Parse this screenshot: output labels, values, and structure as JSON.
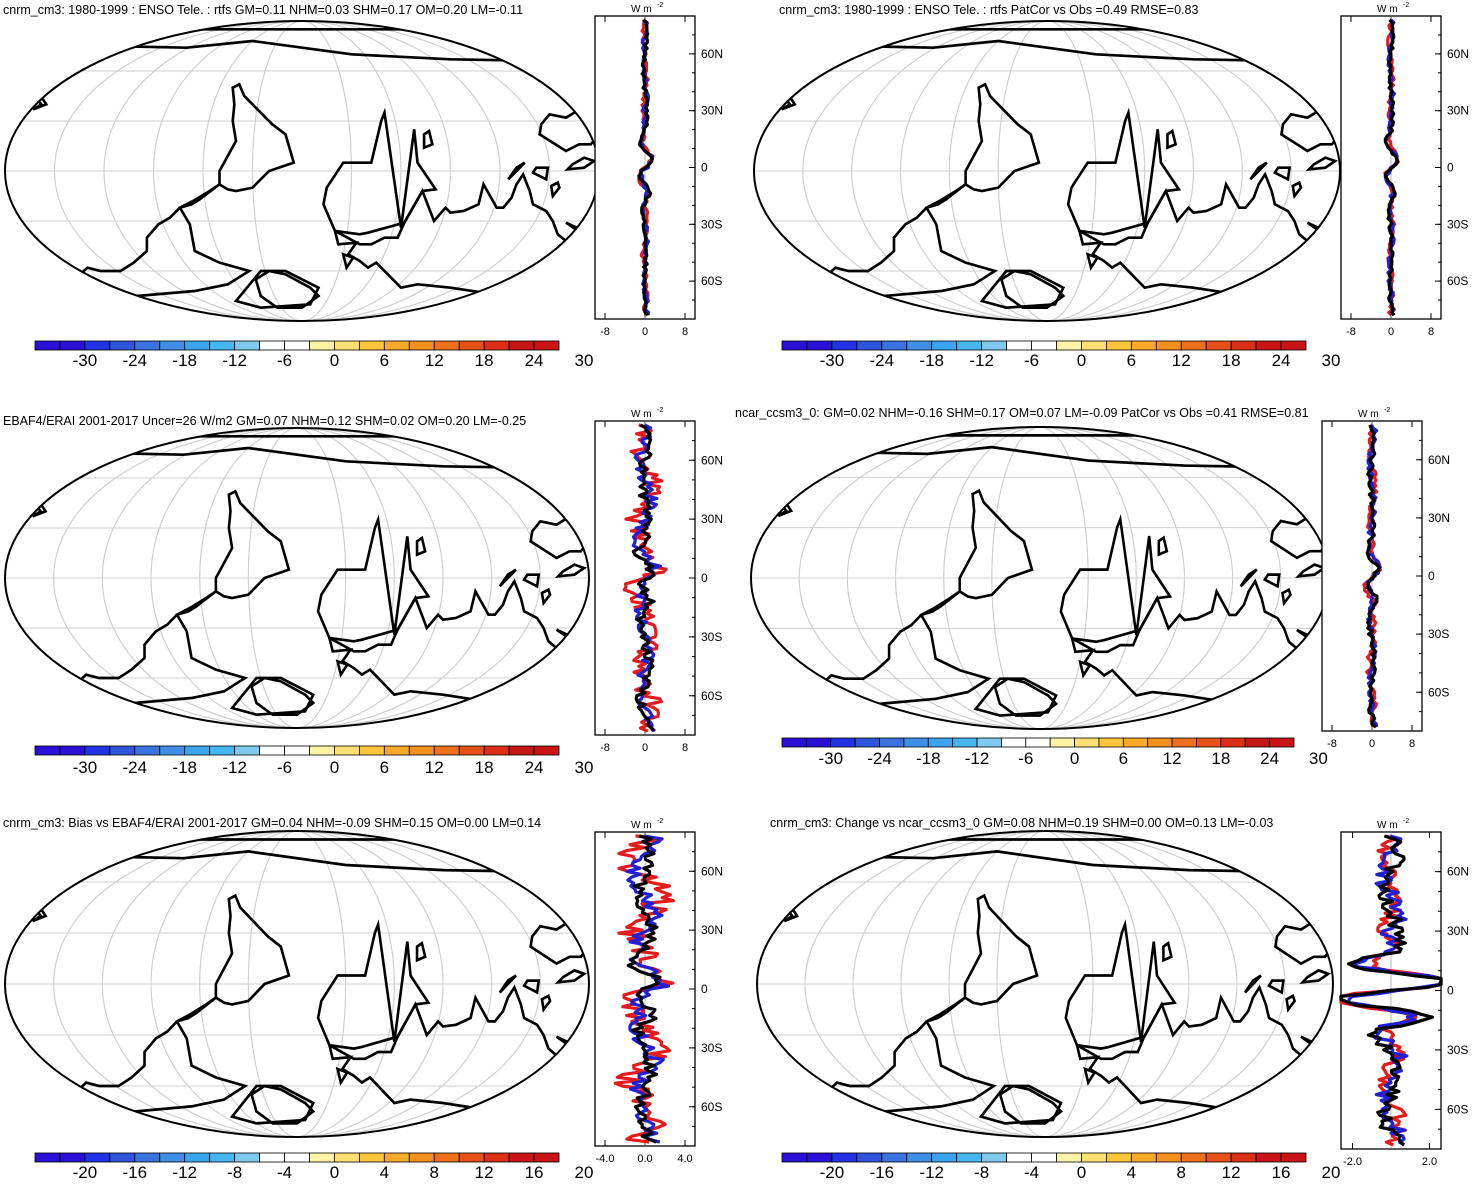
{
  "figure": {
    "type": "multi-panel map figure",
    "panel_count": 6
  },
  "chart_data": [
    {
      "type": "heatmap",
      "title": "cnrm_cm3: 1980-1999 : ENSO Tele. : rtfs GM=0.11 NHM=0.03 SHM=0.17 OM=0.20 LM=-0.11",
      "colorbar": {
        "ticks": [
          "-30",
          "-24",
          "-18",
          "-12",
          "-6",
          "0",
          "6",
          "12",
          "18",
          "24",
          "30"
        ],
        "levels": [
          -33,
          -30,
          -27,
          -24,
          -21,
          -18,
          -15,
          -12,
          -9,
          -6,
          -3,
          0,
          3,
          6,
          9,
          12,
          15,
          18,
          21,
          24,
          27,
          30,
          33
        ]
      },
      "pattern": "enso",
      "zonal_mean": {
        "type": "line",
        "units_label": "W m",
        "units_exp": "-2",
        "xticks": [
          "-8",
          "0",
          "8"
        ],
        "xlim": [
          -10,
          10
        ],
        "yticks": [
          "60N",
          "30N",
          "0",
          "30S",
          "60S"
        ],
        "ylim": [
          -80,
          80
        ],
        "series": [
          {
            "name": "red",
            "color": "#e41a1c",
            "amp": 0.6
          },
          {
            "name": "blue",
            "color": "#1f1fd6",
            "amp": 0.6
          },
          {
            "name": "black",
            "color": "#000000",
            "amp": 0.5
          }
        ]
      }
    },
    {
      "type": "heatmap",
      "title": "cnrm_cm3: 1980-1999 : ENSO Tele. : rtfs PatCor vs Obs =0.49 RMSE=0.83",
      "colorbar": {
        "ticks": [
          "-30",
          "-24",
          "-18",
          "-12",
          "-6",
          "0",
          "6",
          "12",
          "18",
          "24",
          "30"
        ],
        "levels": [
          -33,
          -30,
          -27,
          -24,
          -21,
          -18,
          -15,
          -12,
          -9,
          -6,
          -3,
          0,
          3,
          6,
          9,
          12,
          15,
          18,
          21,
          24,
          27,
          30,
          33
        ]
      },
      "pattern": "enso",
      "zonal_mean": {
        "type": "line",
        "units_label": "W m",
        "units_exp": "-2",
        "xticks": [
          "-8",
          "0",
          "8"
        ],
        "xlim": [
          -10,
          10
        ],
        "yticks": [
          "60N",
          "30N",
          "0",
          "30S",
          "60S"
        ],
        "ylim": [
          -80,
          80
        ],
        "series": [
          {
            "name": "red",
            "color": "#e41a1c",
            "amp": 0.6
          },
          {
            "name": "blue",
            "color": "#1f1fd6",
            "amp": 0.6
          },
          {
            "name": "black",
            "color": "#000000",
            "amp": 0.5
          }
        ]
      }
    },
    {
      "type": "heatmap",
      "title": "EBAF4/ERAI 2001-2017 Uncer=26 W/m2 GM=0.07 NHM=0.12 SHM=0.02 OM=0.20 LM=-0.25",
      "colorbar": {
        "ticks": [
          "-30",
          "-24",
          "-18",
          "-12",
          "-6",
          "0",
          "6",
          "12",
          "18",
          "24",
          "30"
        ],
        "levels": [
          -33,
          -30,
          -27,
          -24,
          -21,
          -18,
          -15,
          -12,
          -9,
          -6,
          -3,
          0,
          3,
          6,
          9,
          12,
          15,
          18,
          21,
          24,
          27,
          30,
          33
        ]
      },
      "pattern": "obs",
      "zonal_mean": {
        "type": "line",
        "units_label": "W m",
        "units_exp": "-2",
        "xticks": [
          "-8",
          "0",
          "8"
        ],
        "xlim": [
          -10,
          10
        ],
        "yticks": [
          "60N",
          "30N",
          "0",
          "30S",
          "60S"
        ],
        "ylim": [
          -80,
          80
        ],
        "series": [
          {
            "name": "red",
            "color": "#e41a1c",
            "amp": 3.2
          },
          {
            "name": "blue",
            "color": "#1f1fd6",
            "amp": 2.0
          },
          {
            "name": "black",
            "color": "#000000",
            "amp": 1.5
          }
        ]
      }
    },
    {
      "type": "heatmap",
      "title": "ncar_ccsm3_0: GM=0.02 NHM=-0.16 SHM=0.17 OM=0.07 LM=-0.09 PatCor vs Obs =0.41 RMSE=0.81",
      "colorbar": {
        "ticks": [
          "-30",
          "-24",
          "-18",
          "-12",
          "-6",
          "0",
          "6",
          "12",
          "18",
          "24",
          "30"
        ],
        "levels": [
          -33,
          -30,
          -27,
          -24,
          -21,
          -18,
          -15,
          -12,
          -9,
          -6,
          -3,
          0,
          3,
          6,
          9,
          12,
          15,
          18,
          21,
          24,
          27,
          30,
          33
        ]
      },
      "pattern": "ncar",
      "zonal_mean": {
        "type": "line",
        "units_label": "W m",
        "units_exp": "-2",
        "xticks": [
          "-8",
          "0",
          "8"
        ],
        "xlim": [
          -10,
          10
        ],
        "yticks": [
          "60N",
          "30N",
          "0",
          "30S",
          "60S"
        ],
        "ylim": [
          -80,
          80
        ],
        "series": [
          {
            "name": "red",
            "color": "#e41a1c",
            "amp": 0.9
          },
          {
            "name": "blue",
            "color": "#1f1fd6",
            "amp": 0.8
          },
          {
            "name": "black",
            "color": "#000000",
            "amp": 0.7
          }
        ]
      }
    },
    {
      "type": "heatmap",
      "title": "cnrm_cm3: Bias vs EBAF4/ERAI 2001-2017 GM=0.04 NHM=-0.09 SHM=0.15 OM=0.00 LM=0.14",
      "colorbar": {
        "ticks": [
          "-20",
          "-16",
          "-12",
          "-8",
          "-4",
          "0",
          "4",
          "8",
          "12",
          "16",
          "20"
        ],
        "levels": [
          -22,
          -20,
          -18,
          -16,
          -14,
          -12,
          -10,
          -8,
          -6,
          -4,
          -2,
          0,
          2,
          4,
          6,
          8,
          10,
          12,
          14,
          16,
          18,
          20,
          22
        ]
      },
      "pattern": "bias",
      "zonal_mean": {
        "type": "line",
        "units_label": "W m",
        "units_exp": "-2",
        "xticks": [
          "-4.0",
          "0.0",
          "4.0"
        ],
        "xlim": [
          -5,
          5
        ],
        "yticks": [
          "60N",
          "30N",
          "0",
          "30S",
          "60S"
        ],
        "ylim": [
          -80,
          80
        ],
        "series": [
          {
            "name": "red",
            "color": "#e41a1c",
            "amp": 2.4
          },
          {
            "name": "blue",
            "color": "#1f1fd6",
            "amp": 1.5
          },
          {
            "name": "black",
            "color": "#000000",
            "amp": 1.0
          }
        ]
      }
    },
    {
      "type": "heatmap",
      "title": "cnrm_cm3: Change vs ncar_ccsm3_0 GM=0.08 NHM=0.19 SHM=0.00 OM=0.13 LM=-0.03",
      "colorbar": {
        "ticks": [
          "-20",
          "-16",
          "-12",
          "-8",
          "-4",
          "0",
          "4",
          "8",
          "12",
          "16",
          "20"
        ],
        "levels": [
          -22,
          -20,
          -18,
          -16,
          -14,
          -12,
          -10,
          -8,
          -6,
          -4,
          -2,
          0,
          2,
          4,
          6,
          8,
          10,
          12,
          14,
          16,
          18,
          20,
          22
        ]
      },
      "pattern": "change",
      "zonal_mean": {
        "type": "line",
        "units_label": "W m",
        "units_exp": "-2",
        "xticks": [
          "-2.0",
          "2.0"
        ],
        "xlim": [
          -2.6,
          2.6
        ],
        "yticks": [
          "60N",
          "30N",
          "0",
          "30S",
          "60S"
        ],
        "ylim": [
          -80,
          80
        ],
        "series": [
          {
            "name": "red",
            "color": "#e41a1c",
            "amp": 0.7
          },
          {
            "name": "blue",
            "color": "#1f1fd6",
            "amp": 0.7
          },
          {
            "name": "black",
            "color": "#000000",
            "amp": 0.6
          }
        ]
      }
    }
  ],
  "colors": {
    "palette": [
      "#2a0fd6",
      "#2233e6",
      "#2f55dc",
      "#3a72e0",
      "#3f8fe8",
      "#37a6ee",
      "#45b6f0",
      "#7dcaee",
      "#ffffff",
      "#ffffff",
      "#fff3a6",
      "#ffe070",
      "#fdc63a",
      "#f9aa2a",
      "#f5901f",
      "#ef7018",
      "#e75016",
      "#dd2e16",
      "#c81414"
    ],
    "land_outline": "#000000",
    "grid": "#cfcfcf",
    "frame": "#000000"
  }
}
